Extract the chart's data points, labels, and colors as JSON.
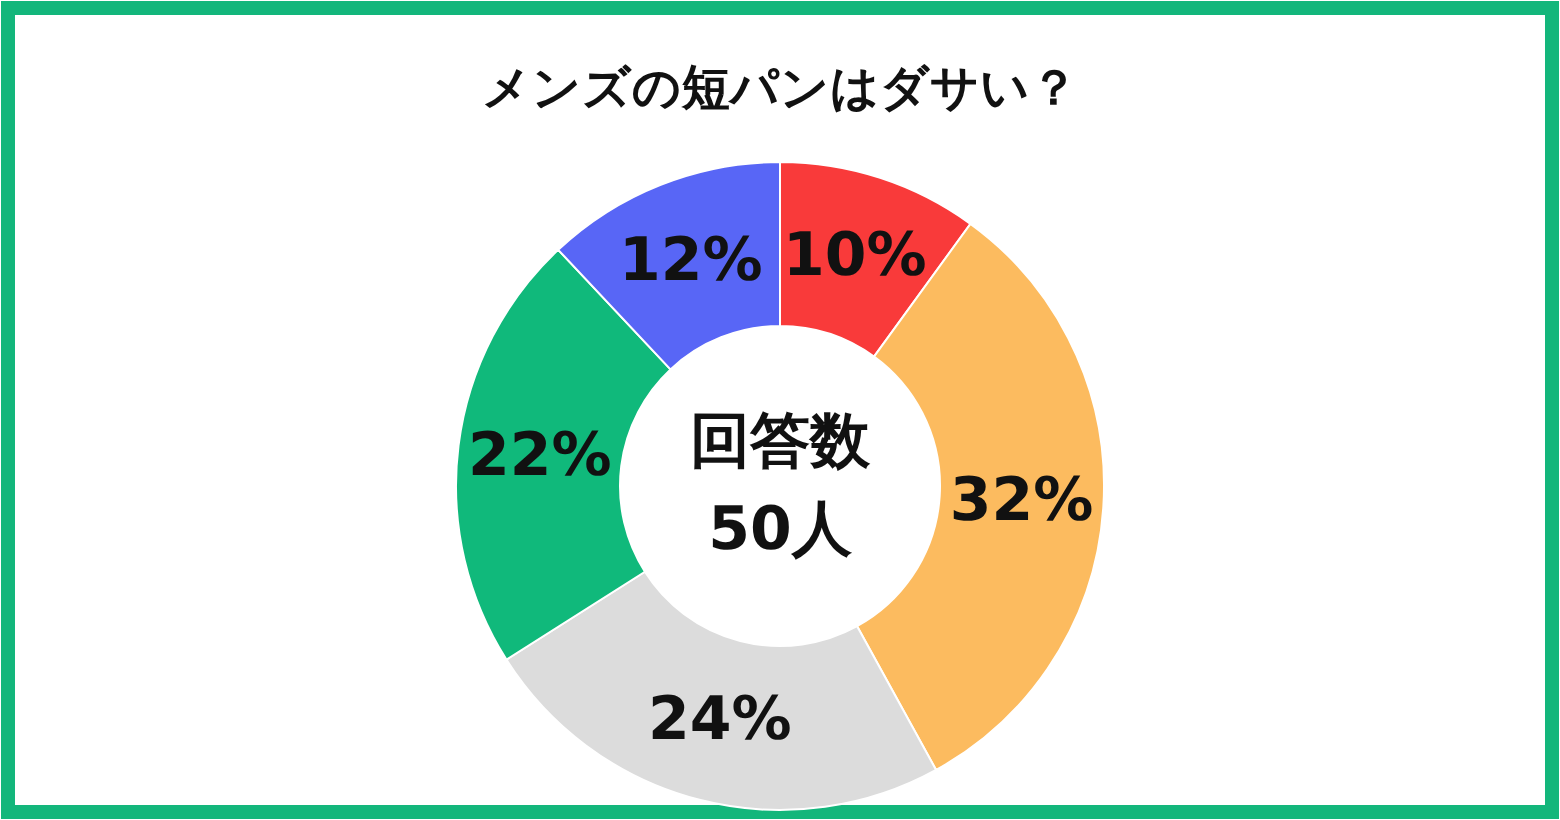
{
  "chart_data": {
    "type": "donut",
    "title": "メンズの短パンはダサい？",
    "categories": [
      null,
      null,
      null,
      null,
      null
    ],
    "values": [
      10,
      32,
      24,
      22,
      12
    ],
    "value_labels": [
      "10%",
      "32%",
      "24%",
      "22%",
      "12%"
    ],
    "colors": [
      "#f93a3a",
      "#fcbb5f",
      "#dcdcdc",
      "#10b97b",
      "#5866f6"
    ],
    "annotations": [
      "回答数\n50人"
    ]
  }
}
